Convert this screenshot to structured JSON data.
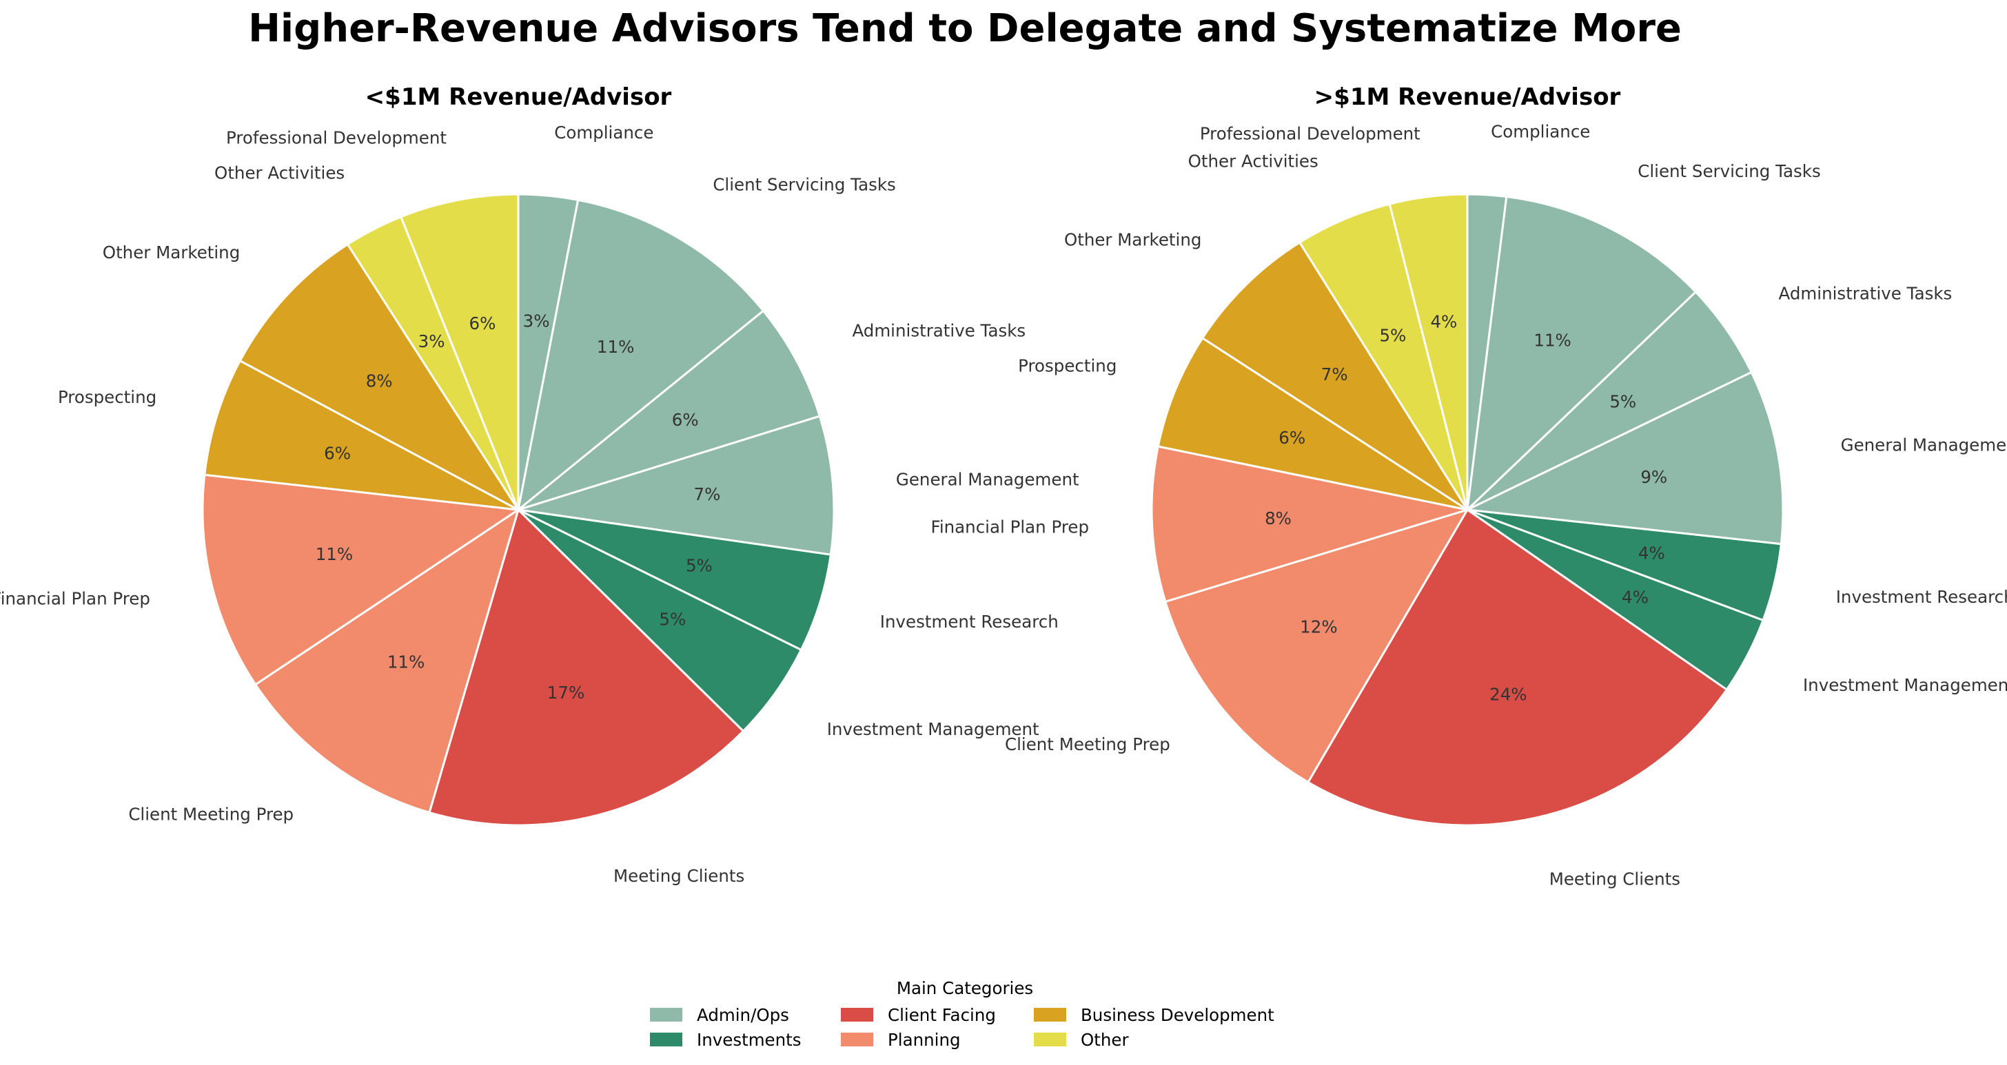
{
  "chart_data": {
    "type": "pie",
    "title": "Higher-Revenue Advisors Tend to Delegate and Systematize More",
    "categories": [
      "Compliance",
      "Client Servicing Tasks",
      "Administrative Tasks",
      "General Management",
      "Investment Research",
      "Investment Management",
      "Meeting Clients",
      "Client Meeting Prep",
      "Financial Plan Prep",
      "Prospecting",
      "Other Marketing",
      "Other Activities",
      "Professional Development"
    ],
    "category_groups": [
      "Admin/Ops",
      "Admin/Ops",
      "Admin/Ops",
      "Admin/Ops",
      "Investments",
      "Investments",
      "Client Facing",
      "Planning",
      "Planning",
      "Business Development",
      "Business Development",
      "Other",
      "Other"
    ],
    "series": [
      {
        "name": "<$1M Revenue/Advisor",
        "values": [
          3,
          11,
          6,
          7,
          5,
          5,
          17,
          11,
          11,
          6,
          8,
          3,
          6
        ],
        "percent_labels": [
          "3%",
          "11%",
          "6%",
          "7%",
          "5%",
          "5%",
          "17%",
          "11%",
          "11%",
          "6%",
          "8%",
          "3%",
          "6%"
        ]
      },
      {
        "name": ">$1M Revenue/Advisor",
        "values": [
          2,
          11,
          5,
          9,
          4,
          4,
          24,
          12,
          8,
          6,
          7,
          5,
          4
        ],
        "percent_labels": [
          "",
          "11%",
          "5%",
          "9%",
          "4%",
          "4%",
          "24%",
          "12%",
          "8%",
          "6%",
          "7%",
          "5%",
          "4%"
        ]
      }
    ],
    "start": "top",
    "direction": "clockwise",
    "legend": {
      "title": "Main Categories",
      "placement": "bottom-center",
      "entries": [
        {
          "label": "Admin/Ops",
          "color": "#8fb9a8"
        },
        {
          "label": "Investments",
          "color": "#2e8b69"
        },
        {
          "label": "Client Facing",
          "color": "#da4c46"
        },
        {
          "label": "Planning",
          "color": "#f28b6b"
        },
        {
          "label": "Business Development",
          "color": "#d9a220"
        },
        {
          "label": "Other",
          "color": "#e4dd4a"
        }
      ]
    },
    "group_colors": {
      "Admin/Ops": "#8fb9a8",
      "Investments": "#2e8b69",
      "Client Facing": "#da4c46",
      "Planning": "#f28b6b",
      "Business Development": "#d9a220",
      "Other": "#e4dd4a"
    }
  }
}
